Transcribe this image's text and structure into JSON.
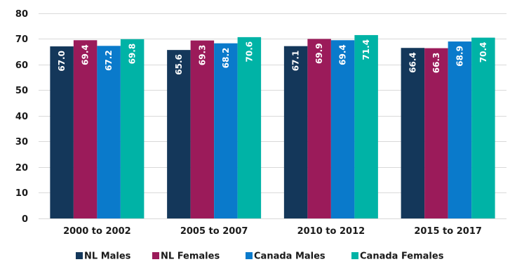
{
  "chart_data": {
    "type": "bar",
    "categories": [
      "2000 to 2002",
      "2005 to 2007",
      "2010 to 2012",
      "2015 to 2017"
    ],
    "series": [
      {
        "name": "NL Males",
        "values": [
          67.0,
          65.6,
          67.1,
          66.4
        ],
        "color": "#14375a"
      },
      {
        "name": "NL Females",
        "values": [
          69.4,
          69.3,
          69.9,
          66.3
        ],
        "color": "#9b1b5a"
      },
      {
        "name": "Canada Males",
        "values": [
          67.2,
          68.2,
          69.4,
          68.9
        ],
        "color": "#0a7acb"
      },
      {
        "name": "Canada Females",
        "values": [
          69.8,
          70.6,
          71.4,
          70.4
        ],
        "color": "#00b3a6"
      }
    ],
    "yticks": [
      0,
      10,
      20,
      30,
      40,
      50,
      60,
      70,
      80
    ],
    "ylim": [
      0,
      80
    ],
    "grid": true,
    "legend_position": "bottom"
  }
}
